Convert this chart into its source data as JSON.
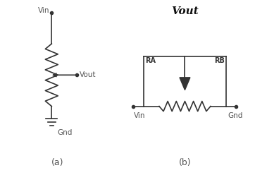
{
  "bg_color": "#ffffff",
  "line_color": "#333333",
  "text_color": "#555555",
  "label_a": "(a)",
  "label_b": "(b)",
  "vin_label": "Vin",
  "gnd_label": "Gnd",
  "vout_label_a": "Vout",
  "ra_label": "RA",
  "rb_label": "RB",
  "vout_italic": "Vout"
}
